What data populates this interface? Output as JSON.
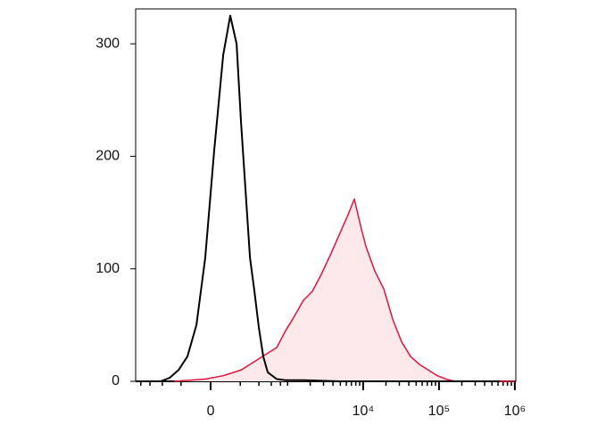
{
  "chart_data": {
    "type": "histogram-overlay",
    "xscale": "arcsinh",
    "xscale_cofactor": 195,
    "xlim": [
      -940,
      1031000
    ],
    "xticks": [
      {
        "value": 0,
        "label": "0"
      },
      {
        "value": 10000,
        "label": "10⁴"
      },
      {
        "value": 100000,
        "label": "10⁵"
      },
      {
        "value": 1000000,
        "label": "10⁶"
      }
    ],
    "xminor_ticks": [
      -800,
      -600,
      -400,
      -200,
      200,
      400,
      600,
      800,
      1000,
      2000,
      3000,
      4000,
      5000,
      6000,
      7000,
      8000,
      9000,
      20000,
      30000,
      40000,
      50000,
      60000,
      70000,
      80000,
      90000,
      200000,
      300000,
      400000,
      500000,
      600000,
      700000,
      800000,
      900000
    ],
    "ylim": [
      0,
      331
    ],
    "yticks": [
      0,
      100,
      200,
      300
    ],
    "series": [
      {
        "color": "#e0143c",
        "fill": "#fde8ea",
        "x": [
          -265,
          -32,
          76,
          207,
          398,
          534,
          712,
          940,
          1238,
          1626,
          2137,
          2804,
          3680,
          4820,
          6328,
          7644,
          9516,
          10880,
          14270,
          18720,
          24550,
          32200,
          42200,
          55340,
          72540,
          95160,
          124000,
          163400,
          1000000
        ],
        "values": [
          0,
          2,
          5,
          10,
          20,
          25,
          30,
          45,
          58,
          72,
          80,
          95,
          112,
          130,
          148,
          162,
          135,
          120,
          98,
          82,
          55,
          35,
          22,
          15,
          10,
          5,
          2,
          0,
          0
        ]
      },
      {
        "color": "#000000",
        "fill": "none",
        "x": [
          -425,
          -312,
          -222,
          -149,
          -87,
          -32,
          21,
          76,
          123,
          170,
          207,
          247,
          292,
          343,
          398,
          462,
          534,
          712,
          940,
          1626,
          4820,
          32200,
          124000,
          632000
        ],
        "values": [
          0,
          3,
          10,
          22,
          50,
          110,
          205,
          290,
          325,
          300,
          230,
          170,
          110,
          80,
          48,
          22,
          8,
          2,
          1,
          1,
          0,
          0,
          0,
          0
        ]
      }
    ]
  }
}
